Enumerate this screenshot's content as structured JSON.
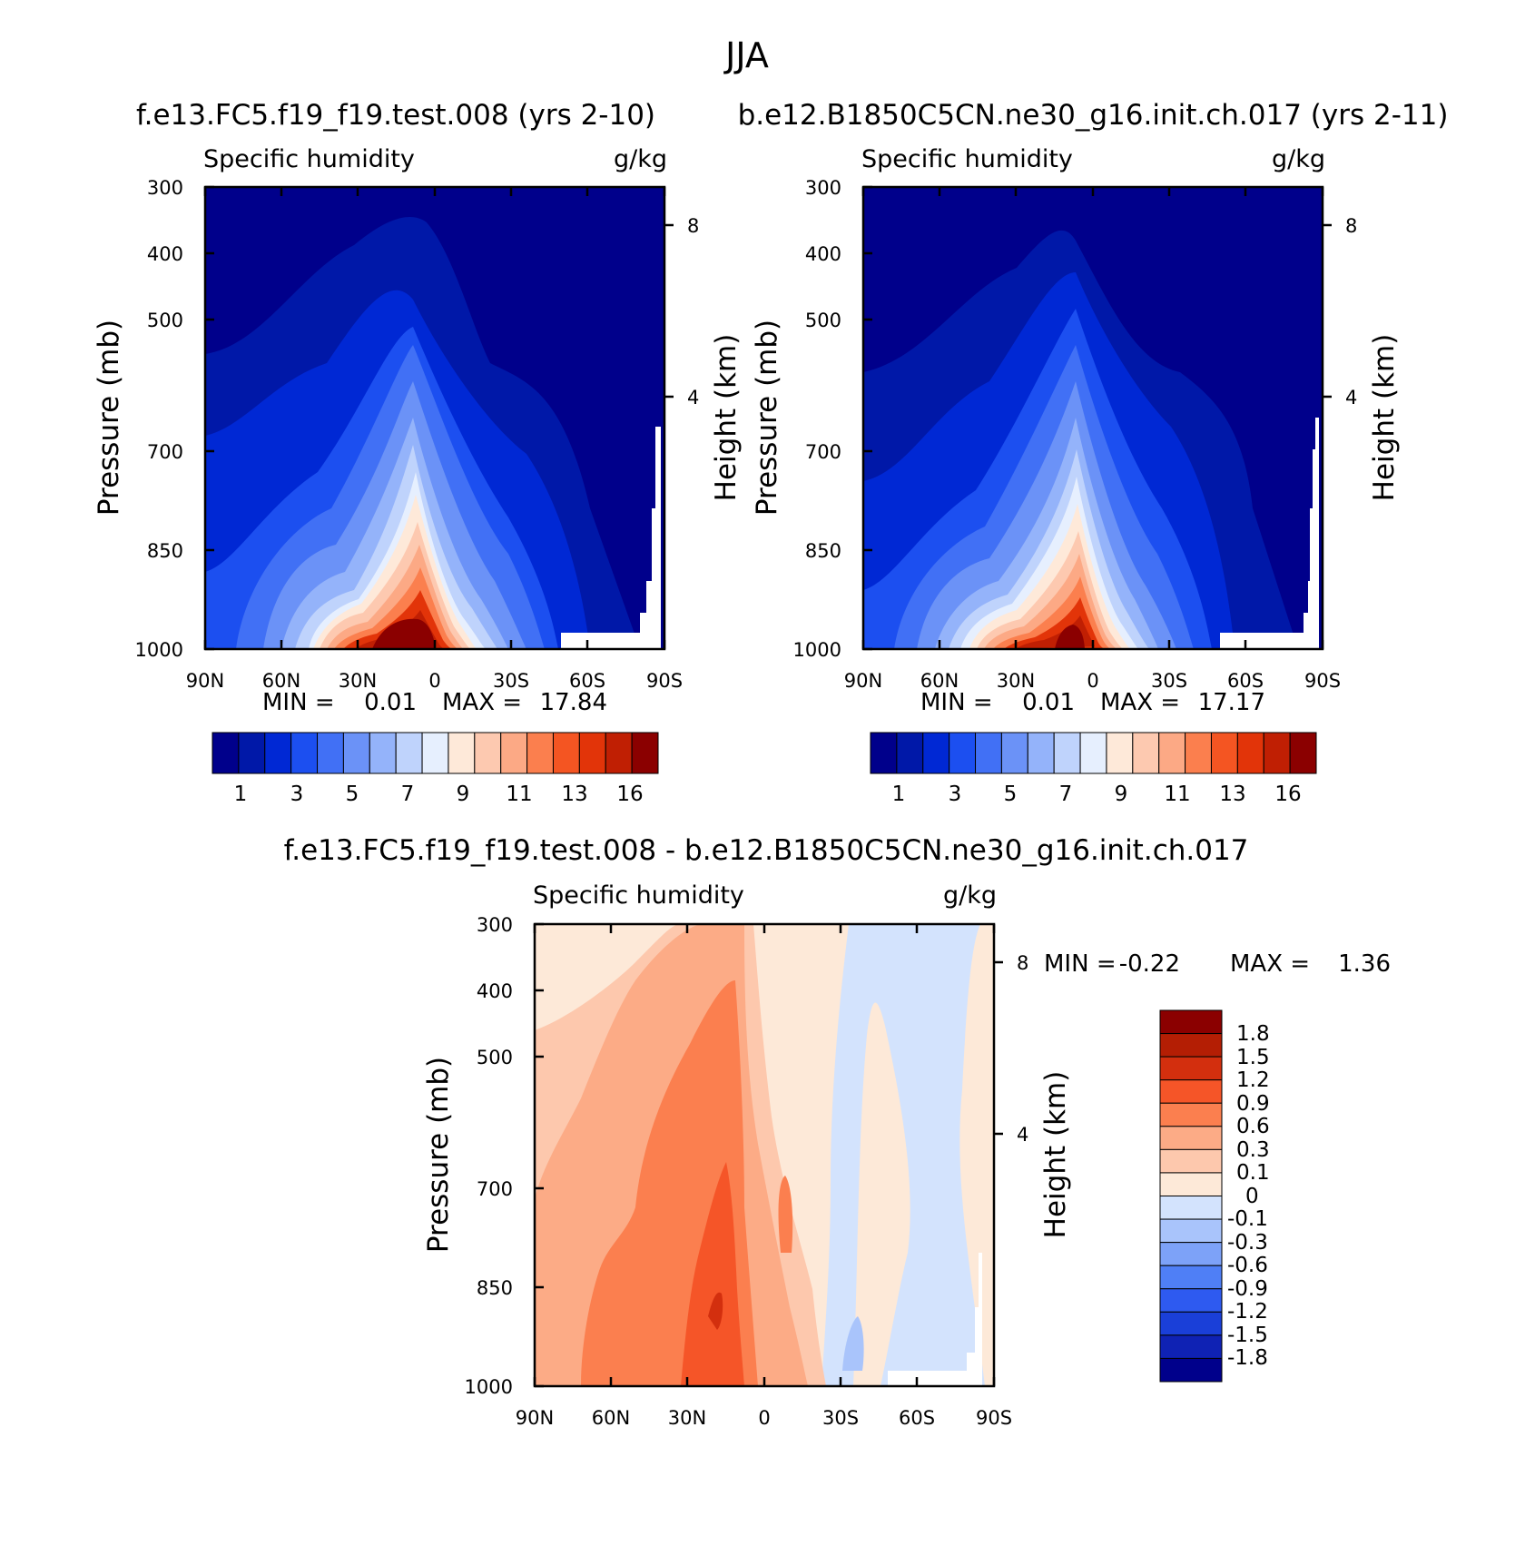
{
  "figure": {
    "title": "JJA"
  },
  "colors": {
    "abs_scale": [
      "#00008b",
      "#0018a8",
      "#0028d4",
      "#1c4ff0",
      "#4170f5",
      "#6b92f7",
      "#94b3fa",
      "#bfd3fc",
      "#e6effe",
      "#fee9d9",
      "#fdc9b0",
      "#fca985",
      "#fb7f4e",
      "#f45522",
      "#e23409",
      "#c01f03",
      "#8b0000"
    ],
    "anom_scale": [
      "#00008b",
      "#0f22b4",
      "#1a3fd8",
      "#2e5af0",
      "#4f7ff6",
      "#7da2f8",
      "#a9c4fb",
      "#d3e3fd",
      "#fde9d8",
      "#fdc8ad",
      "#fcab86",
      "#fb7f4f",
      "#f55528",
      "#d32f0e",
      "#b41e04",
      "#8b0000"
    ]
  },
  "chart_data": [
    {
      "type": "contour",
      "case_title": "f.e13.FC5.f19_f19.test.008 (yrs 2-10)",
      "variable_label": "Specific humidity",
      "units_label": "g/kg",
      "ylabel": "Pressure (mb)",
      "y2label": "Height (km)",
      "x_ticks": [
        "90N",
        "60N",
        "30N",
        "0",
        "30S",
        "60S",
        "90S"
      ],
      "y_ticks": [
        "300",
        "400",
        "500",
        "700",
        "850",
        "1000"
      ],
      "y2_ticks": [
        "8",
        "4"
      ],
      "ylim": [
        1000,
        300
      ],
      "xlim": [
        90,
        -90
      ],
      "min_label": "MIN =",
      "min_value": "0.01",
      "max_label": "MAX =",
      "max_value": "17.84",
      "levels": [
        1,
        2,
        3,
        4,
        5,
        6,
        7,
        8,
        9,
        10,
        11,
        12,
        13,
        14,
        16,
        17
      ],
      "colorbar_labels": [
        "1",
        "3",
        "5",
        "7",
        "9",
        "11",
        "13",
        "16"
      ]
    },
    {
      "type": "contour",
      "case_title": "b.e12.B1850C5CN.ne30_g16.init.ch.017 (yrs 2-11)",
      "variable_label": "Specific humidity",
      "units_label": "g/kg",
      "ylabel": "Pressure (mb)",
      "y2label": "Height (km)",
      "x_ticks": [
        "90N",
        "60N",
        "30N",
        "0",
        "30S",
        "60S",
        "90S"
      ],
      "y_ticks": [
        "300",
        "400",
        "500",
        "700",
        "850",
        "1000"
      ],
      "y2_ticks": [
        "8",
        "4"
      ],
      "ylim": [
        1000,
        300
      ],
      "xlim": [
        90,
        -90
      ],
      "min_label": "MIN =",
      "min_value": "0.01",
      "max_label": "MAX =",
      "max_value": "17.17",
      "levels": [
        1,
        2,
        3,
        4,
        5,
        6,
        7,
        8,
        9,
        10,
        11,
        12,
        13,
        14,
        16,
        17
      ],
      "colorbar_labels": [
        "1",
        "3",
        "5",
        "7",
        "9",
        "11",
        "13",
        "16"
      ]
    },
    {
      "type": "contour",
      "case_title": "f.e13.FC5.f19_f19.test.008 - b.e12.B1850C5CN.ne30_g16.init.ch.017",
      "variable_label": "Specific humidity",
      "units_label": "g/kg",
      "ylabel": "Pressure (mb)",
      "y2label": "Height (km)",
      "x_ticks": [
        "90N",
        "60N",
        "30N",
        "0",
        "30S",
        "60S",
        "90S"
      ],
      "y_ticks": [
        "300",
        "400",
        "500",
        "700",
        "850",
        "1000"
      ],
      "y2_ticks": [
        "8",
        "4"
      ],
      "ylim": [
        1000,
        300
      ],
      "xlim": [
        90,
        -90
      ],
      "min_label": "MIN =",
      "min_value": "-0.22",
      "max_label": "MAX =",
      "max_value": "1.36",
      "levels": [
        -1.8,
        -1.5,
        -1.2,
        -0.9,
        -0.6,
        -0.3,
        -0.1,
        0,
        0.1,
        0.3,
        0.6,
        0.9,
        1.2,
        1.5,
        1.8
      ],
      "colorbar_labels": [
        "1.8",
        "1.5",
        "1.2",
        "0.9",
        "0.6",
        "0.3",
        "0.1",
        "0",
        "-0.1",
        "-0.3",
        "-0.6",
        "-0.9",
        "-1.2",
        "-1.5",
        "-1.8"
      ]
    }
  ]
}
